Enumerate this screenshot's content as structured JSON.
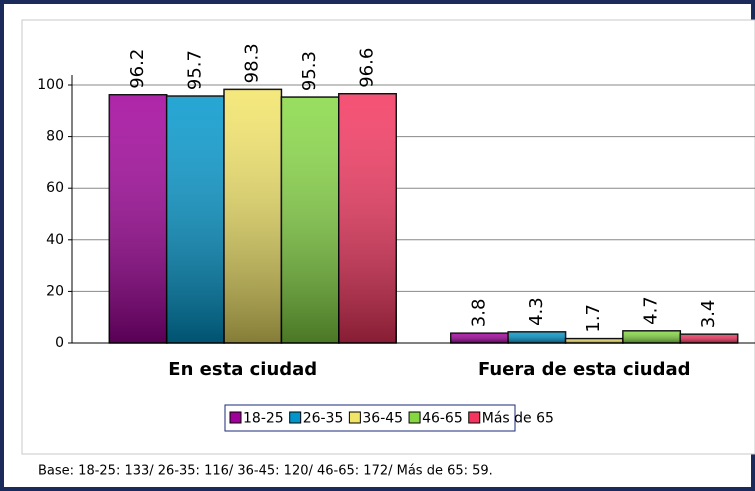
{
  "chart_data": {
    "type": "bar",
    "categories": [
      "En esta ciudad",
      "Fuera de esta ciudad"
    ],
    "series": [
      {
        "name": "18-25",
        "color": "#a0009a",
        "values": [
          96.2,
          3.8
        ]
      },
      {
        "name": "26-35",
        "color": "#0096cc",
        "values": [
          95.7,
          4.3
        ]
      },
      {
        "name": "36-45",
        "color": "#f2e466",
        "values": [
          98.3,
          1.7
        ]
      },
      {
        "name": "46-65",
        "color": "#86d843",
        "values": [
          95.3,
          4.7
        ]
      },
      {
        "name": "Más de 65",
        "color": "#f4345e",
        "values": [
          96.6,
          3.4
        ]
      }
    ],
    "ylim": [
      0,
      100
    ],
    "yticks": [
      0,
      20,
      40,
      60,
      80,
      100
    ],
    "grid": true,
    "note": "Base: 18-25: 133/ 26-35: 116/ 36-45: 120/ 46-65: 172/ Más de 65: 59."
  }
}
